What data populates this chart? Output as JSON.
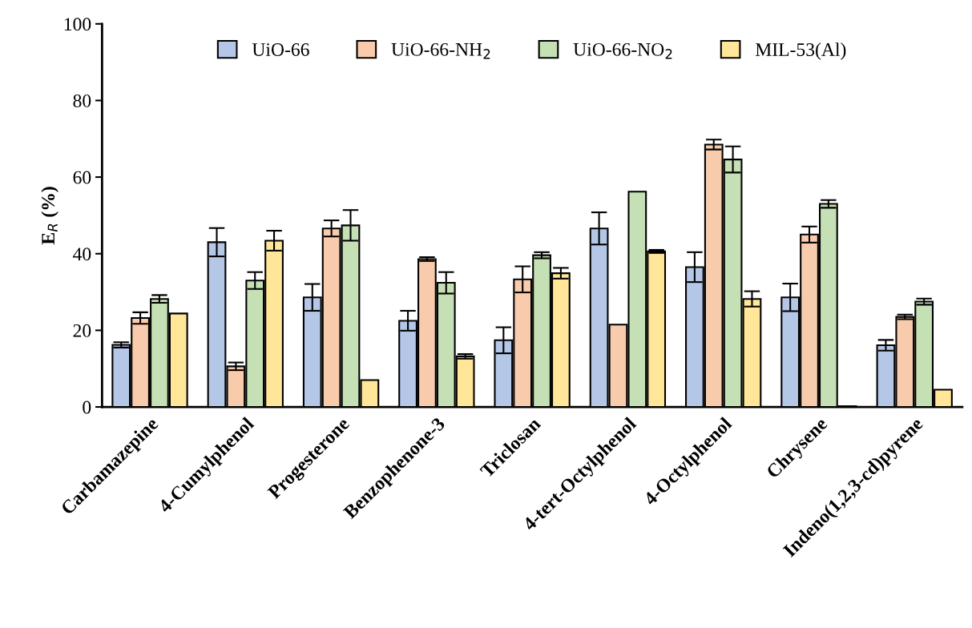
{
  "chart_data": {
    "type": "bar",
    "ylabel": "E$_{R}$ (%)",
    "categories": [
      "Carbamazepine",
      "4-Cumylphenol",
      "Progesterone",
      "Benzophenone-3",
      "Triclosan",
      "4-tert-Octylphenol",
      "4-Octylphenol",
      "Chrysene",
      "Indeno(1,2,3-cd)pyrene"
    ],
    "series": [
      {
        "name": "UiO-66",
        "color": "#b4c7e7",
        "values": [
          16.2,
          43.0,
          28.6,
          22.5,
          17.4,
          46.6,
          36.5,
          28.6,
          16.1
        ],
        "errors": [
          0.7,
          3.7,
          3.5,
          2.6,
          3.4,
          4.2,
          3.9,
          3.6,
          1.4
        ]
      },
      {
        "name": "UiO-66-NH$_{2}$",
        "color": "#f8cbad",
        "values": [
          23.2,
          10.6,
          46.6,
          38.6,
          33.3,
          21.5,
          68.5,
          45.0,
          23.5
        ],
        "errors": [
          1.5,
          1.0,
          2.1,
          0.5,
          3.4,
          null,
          1.3,
          2.1,
          0.6
        ]
      },
      {
        "name": "UiO-66-NO$_{2}$",
        "color": "#c5e0b4",
        "values": [
          28.2,
          33.0,
          47.4,
          32.4,
          39.6,
          56.2,
          64.6,
          53.0,
          27.5
        ],
        "errors": [
          1.0,
          2.2,
          4.0,
          2.8,
          0.8,
          null,
          3.4,
          1.0,
          0.8
        ]
      },
      {
        "name": "MIL-53(Al)",
        "color": "#ffe699",
        "values": [
          24.4,
          43.4,
          7.0,
          13.2,
          34.9,
          40.6,
          28.2,
          0.2,
          4.5
        ],
        "errors": [
          null,
          2.6,
          null,
          0.6,
          1.4,
          0.4,
          2.0,
          null,
          null
        ]
      }
    ],
    "ylim": [
      0,
      100
    ],
    "yticks": [
      0,
      20,
      40,
      60,
      80,
      100
    ],
    "grid": false,
    "legend": "top"
  }
}
